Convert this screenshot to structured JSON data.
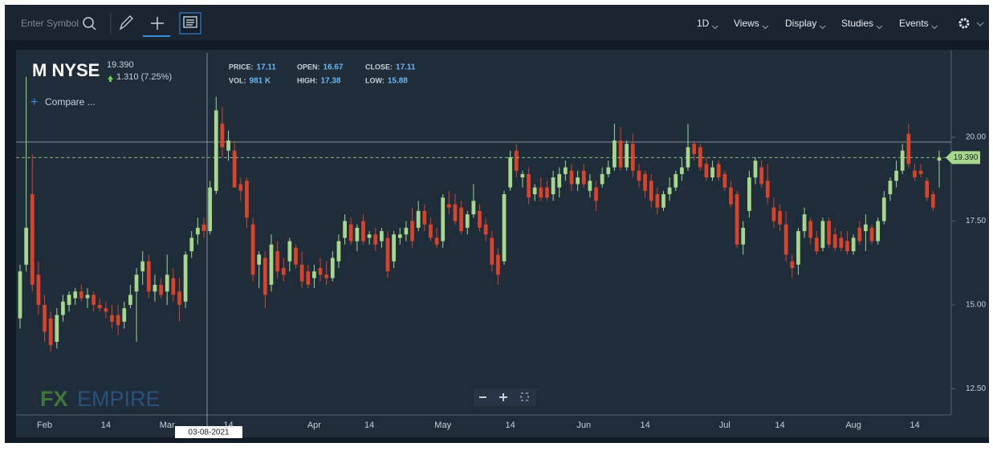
{
  "toolbar": {
    "search_placeholder": "Enter Symbol",
    "menu": [
      "1D",
      "Views",
      "Display",
      "Studies",
      "Events"
    ]
  },
  "header": {
    "symbol": "M NYSE",
    "last": "19.390",
    "change": "1.310 (7.25%)",
    "compare": "Compare ...",
    "info": [
      {
        "label": "PRICE:",
        "value": "17.11"
      },
      {
        "label": "OPEN:",
        "value": "16.67"
      },
      {
        "label": "CLOSE:",
        "value": "17.11"
      },
      {
        "label": "VOL:",
        "value": "981 K"
      },
      {
        "label": "HIGH:",
        "value": "17.38"
      },
      {
        "label": "LOW:",
        "value": "15.88"
      }
    ]
  },
  "watermark": {
    "first": "FX",
    "second": "EMPIRE"
  },
  "chart_data": {
    "type": "candlestick",
    "up_color": "#a6d78c",
    "down_color": "#d7432b",
    "ylim": [
      11.77,
      22.51
    ],
    "yticks": [
      {
        "value": 12.5,
        "label": "12.50"
      },
      {
        "value": 15,
        "label": "15.00"
      },
      {
        "value": 17.5,
        "label": "17.50"
      },
      {
        "value": 20,
        "label": "20.00"
      }
    ],
    "crosshair_date": "03-08-2021",
    "last_price_label": "19.390",
    "categories": [
      null,
      null,
      null,
      null,
      "Feb",
      null,
      null,
      null,
      null,
      null,
      null,
      null,
      null,
      null,
      "14",
      null,
      null,
      null,
      null,
      null,
      null,
      null,
      null,
      null,
      "Mar",
      null,
      null,
      null,
      null,
      null,
      null,
      null,
      null,
      null,
      "14",
      null,
      null,
      null,
      null,
      null,
      null,
      null,
      null,
      null,
      null,
      null,
      null,
      null,
      "Apr",
      null,
      null,
      null,
      null,
      null,
      null,
      null,
      null,
      "14",
      null,
      null,
      null,
      null,
      null,
      null,
      null,
      null,
      null,
      null,
      null,
      "May",
      null,
      null,
      null,
      null,
      null,
      null,
      null,
      null,
      null,
      null,
      "14",
      null,
      null,
      null,
      null,
      null,
      null,
      null,
      null,
      null,
      null,
      null,
      "Jun",
      null,
      null,
      null,
      null,
      null,
      null,
      null,
      null,
      null,
      "14",
      null,
      null,
      null,
      null,
      null,
      null,
      null,
      null,
      null,
      null,
      null,
      null,
      "Jul",
      null,
      null,
      null,
      null,
      null,
      null,
      null,
      null,
      "14",
      null,
      null,
      null,
      null,
      null,
      null,
      null,
      null,
      null,
      null,
      null,
      "Aug",
      null,
      null,
      null,
      null,
      null,
      null,
      null,
      null,
      null,
      "14",
      null,
      null,
      null,
      null
    ],
    "candles": [
      {
        "open": 14.6,
        "high": 16.2,
        "low": 14.3,
        "close": 16.0
      },
      {
        "open": 16.2,
        "high": 21.8,
        "low": 16.0,
        "close": 17.3
      },
      {
        "open": 18.3,
        "high": 19.5,
        "low": 15.4,
        "close": 15.6
      },
      {
        "open": 15.9,
        "high": 16.3,
        "low": 14.7,
        "close": 15.0
      },
      {
        "open": 15.0,
        "high": 15.3,
        "low": 13.9,
        "close": 14.2
      },
      {
        "open": 14.6,
        "high": 14.8,
        "low": 13.6,
        "close": 13.8
      },
      {
        "open": 13.9,
        "high": 14.9,
        "low": 13.7,
        "close": 14.7
      },
      {
        "open": 14.7,
        "high": 15.3,
        "low": 14.5,
        "close": 15.1
      },
      {
        "open": 15.0,
        "high": 15.4,
        "low": 14.8,
        "close": 15.3
      },
      {
        "open": 15.2,
        "high": 15.5,
        "low": 15.0,
        "close": 15.4
      },
      {
        "open": 15.4,
        "high": 15.6,
        "low": 15.1,
        "close": 15.2
      },
      {
        "open": 15.2,
        "high": 15.5,
        "low": 14.9,
        "close": 15.3
      },
      {
        "open": 15.3,
        "high": 15.4,
        "low": 14.8,
        "close": 15.0
      },
      {
        "open": 15.0,
        "high": 15.2,
        "low": 14.8,
        "close": 14.9
      },
      {
        "open": 14.9,
        "high": 15.1,
        "low": 14.6,
        "close": 14.8
      },
      {
        "open": 14.7,
        "high": 15.0,
        "low": 14.3,
        "close": 14.5
      },
      {
        "open": 14.7,
        "high": 15.0,
        "low": 14.1,
        "close": 14.4
      },
      {
        "open": 14.5,
        "high": 15.1,
        "low": 14.3,
        "close": 14.9
      },
      {
        "open": 15.0,
        "high": 15.6,
        "low": 14.9,
        "close": 15.3
      },
      {
        "open": 15.4,
        "high": 16.1,
        "low": 13.9,
        "close": 15.9
      },
      {
        "open": 16.0,
        "high": 16.6,
        "low": 15.6,
        "close": 16.3
      },
      {
        "open": 16.3,
        "high": 16.5,
        "low": 15.2,
        "close": 15.4
      },
      {
        "open": 15.4,
        "high": 15.9,
        "low": 15.1,
        "close": 15.6
      },
      {
        "open": 15.6,
        "high": 15.8,
        "low": 15.2,
        "close": 15.3
      },
      {
        "open": 15.4,
        "high": 16.5,
        "low": 15.0,
        "close": 15.9
      },
      {
        "open": 15.8,
        "high": 16.1,
        "low": 15.1,
        "close": 15.3
      },
      {
        "open": 15.4,
        "high": 15.8,
        "low": 14.5,
        "close": 15.0
      },
      {
        "open": 15.1,
        "high": 16.6,
        "low": 14.9,
        "close": 16.5
      },
      {
        "open": 16.6,
        "high": 17.2,
        "low": 16.4,
        "close": 17.0
      },
      {
        "open": 17.1,
        "high": 17.6,
        "low": 16.8,
        "close": 17.3
      },
      {
        "open": 17.4,
        "high": 17.6,
        "low": 17.0,
        "close": 17.2
      },
      {
        "open": 17.2,
        "high": 18.7,
        "low": 17.1,
        "close": 18.5
      },
      {
        "open": 18.4,
        "high": 21.2,
        "low": 18.3,
        "close": 20.8
      },
      {
        "open": 20.4,
        "high": 20.9,
        "low": 19.4,
        "close": 19.7
      },
      {
        "open": 19.6,
        "high": 20.2,
        "low": 19.3,
        "close": 19.9
      },
      {
        "open": 19.6,
        "high": 19.9,
        "low": 18.5,
        "close": 18.5
      },
      {
        "open": 18.6,
        "high": 18.8,
        "low": 18.1,
        "close": 18.4
      },
      {
        "open": 18.7,
        "high": 18.8,
        "low": 17.3,
        "close": 17.6
      },
      {
        "open": 17.4,
        "high": 17.6,
        "low": 15.7,
        "close": 15.9
      },
      {
        "open": 16.2,
        "high": 16.6,
        "low": 15.5,
        "close": 16.5
      },
      {
        "open": 16.4,
        "high": 16.6,
        "low": 14.9,
        "close": 15.3
      },
      {
        "open": 15.6,
        "high": 17.1,
        "low": 15.4,
        "close": 16.8
      },
      {
        "open": 16.6,
        "high": 16.9,
        "low": 15.8,
        "close": 16.0
      },
      {
        "open": 16.1,
        "high": 16.4,
        "low": 15.7,
        "close": 15.9
      },
      {
        "open": 16.3,
        "high": 17.0,
        "low": 16.0,
        "close": 16.9
      },
      {
        "open": 16.7,
        "high": 16.8,
        "low": 16.1,
        "close": 16.2
      },
      {
        "open": 16.2,
        "high": 16.6,
        "low": 15.5,
        "close": 15.7
      },
      {
        "open": 16.0,
        "high": 16.2,
        "low": 15.5,
        "close": 15.6
      },
      {
        "open": 15.8,
        "high": 16.2,
        "low": 15.5,
        "close": 16.0
      },
      {
        "open": 16.1,
        "high": 16.4,
        "low": 15.7,
        "close": 15.9
      },
      {
        "open": 15.9,
        "high": 16.3,
        "low": 15.6,
        "close": 15.8
      },
      {
        "open": 15.8,
        "high": 16.6,
        "low": 15.7,
        "close": 16.4
      },
      {
        "open": 16.3,
        "high": 17.1,
        "low": 16.1,
        "close": 16.9
      },
      {
        "open": 17.0,
        "high": 17.7,
        "low": 16.8,
        "close": 17.5
      },
      {
        "open": 17.4,
        "high": 17.6,
        "low": 16.8,
        "close": 16.9
      },
      {
        "open": 16.9,
        "high": 17.4,
        "low": 16.6,
        "close": 17.3
      },
      {
        "open": 17.5,
        "high": 17.7,
        "low": 16.8,
        "close": 16.9
      },
      {
        "open": 17.0,
        "high": 17.2,
        "low": 16.8,
        "close": 17.1
      },
      {
        "open": 17.1,
        "high": 17.3,
        "low": 16.6,
        "close": 16.8
      },
      {
        "open": 16.9,
        "high": 17.3,
        "low": 16.7,
        "close": 17.2
      },
      {
        "open": 17.0,
        "high": 17.2,
        "low": 15.8,
        "close": 16.0
      },
      {
        "open": 16.3,
        "high": 17.2,
        "low": 16.1,
        "close": 17.1
      },
      {
        "open": 17.0,
        "high": 17.3,
        "low": 16.8,
        "close": 17.1
      },
      {
        "open": 17.1,
        "high": 17.5,
        "low": 16.9,
        "close": 17.3
      },
      {
        "open": 17.5,
        "high": 17.9,
        "low": 16.7,
        "close": 16.9
      },
      {
        "open": 17.3,
        "high": 18.1,
        "low": 17.2,
        "close": 17.8
      },
      {
        "open": 17.8,
        "high": 18.0,
        "low": 17.2,
        "close": 17.4
      },
      {
        "open": 17.4,
        "high": 17.6,
        "low": 16.9,
        "close": 17.0
      },
      {
        "open": 17.0,
        "high": 17.3,
        "low": 16.7,
        "close": 16.8
      },
      {
        "open": 16.9,
        "high": 18.3,
        "low": 16.7,
        "close": 18.2
      },
      {
        "open": 18.0,
        "high": 18.4,
        "low": 17.7,
        "close": 17.9
      },
      {
        "open": 18.0,
        "high": 18.3,
        "low": 17.4,
        "close": 17.5
      },
      {
        "open": 17.9,
        "high": 18.1,
        "low": 17.1,
        "close": 17.2
      },
      {
        "open": 17.3,
        "high": 17.8,
        "low": 17.1,
        "close": 17.7
      },
      {
        "open": 17.7,
        "high": 18.6,
        "low": 17.6,
        "close": 18.1
      },
      {
        "open": 17.8,
        "high": 18.0,
        "low": 17.2,
        "close": 17.3
      },
      {
        "open": 17.4,
        "high": 17.6,
        "low": 16.9,
        "close": 17.1
      },
      {
        "open": 17.0,
        "high": 17.2,
        "low": 16.0,
        "close": 16.2
      },
      {
        "open": 16.5,
        "high": 16.7,
        "low": 15.6,
        "close": 15.9
      },
      {
        "open": 16.3,
        "high": 18.4,
        "low": 16.2,
        "close": 18.3
      },
      {
        "open": 18.5,
        "high": 19.6,
        "low": 18.4,
        "close": 19.4
      },
      {
        "open": 19.6,
        "high": 19.8,
        "low": 18.8,
        "close": 19.0
      },
      {
        "open": 18.8,
        "high": 19.0,
        "low": 18.5,
        "close": 18.9
      },
      {
        "open": 18.9,
        "high": 19.1,
        "low": 18.0,
        "close": 18.2
      },
      {
        "open": 18.3,
        "high": 18.6,
        "low": 18.1,
        "close": 18.5
      },
      {
        "open": 18.5,
        "high": 18.8,
        "low": 18.1,
        "close": 18.2
      },
      {
        "open": 18.5,
        "high": 18.7,
        "low": 18.1,
        "close": 18.2
      },
      {
        "open": 18.3,
        "high": 19.0,
        "low": 18.1,
        "close": 18.8
      },
      {
        "open": 18.5,
        "high": 19.1,
        "low": 18.2,
        "close": 18.9
      },
      {
        "open": 18.9,
        "high": 19.3,
        "low": 18.7,
        "close": 19.1
      },
      {
        "open": 19.0,
        "high": 19.2,
        "low": 18.4,
        "close": 18.6
      },
      {
        "open": 18.6,
        "high": 19.0,
        "low": 18.4,
        "close": 18.8
      },
      {
        "open": 19.0,
        "high": 19.2,
        "low": 18.5,
        "close": 18.6
      },
      {
        "open": 18.4,
        "high": 18.9,
        "low": 18.2,
        "close": 18.7
      },
      {
        "open": 18.5,
        "high": 18.7,
        "low": 17.8,
        "close": 18.1
      },
      {
        "open": 18.6,
        "high": 19.1,
        "low": 18.5,
        "close": 18.9
      },
      {
        "open": 18.9,
        "high": 19.3,
        "low": 18.8,
        "close": 19.1
      },
      {
        "open": 19.1,
        "high": 20.4,
        "low": 19.0,
        "close": 19.9
      },
      {
        "open": 19.9,
        "high": 20.3,
        "low": 19.0,
        "close": 19.1
      },
      {
        "open": 19.1,
        "high": 19.9,
        "low": 19.0,
        "close": 19.8
      },
      {
        "open": 19.8,
        "high": 20.1,
        "low": 18.8,
        "close": 19.0
      },
      {
        "open": 19.0,
        "high": 19.2,
        "low": 18.5,
        "close": 18.7
      },
      {
        "open": 18.9,
        "high": 19.0,
        "low": 18.2,
        "close": 18.4
      },
      {
        "open": 18.7,
        "high": 18.9,
        "low": 17.9,
        "close": 18.1
      },
      {
        "open": 18.3,
        "high": 18.5,
        "low": 17.7,
        "close": 17.9
      },
      {
        "open": 17.9,
        "high": 18.4,
        "low": 17.8,
        "close": 18.3
      },
      {
        "open": 18.3,
        "high": 18.8,
        "low": 18.1,
        "close": 18.5
      },
      {
        "open": 18.5,
        "high": 19.0,
        "low": 18.4,
        "close": 18.9
      },
      {
        "open": 18.9,
        "high": 19.4,
        "low": 18.7,
        "close": 19.1
      },
      {
        "open": 19.1,
        "high": 20.4,
        "low": 19.0,
        "close": 19.7
      },
      {
        "open": 19.8,
        "high": 19.9,
        "low": 19.3,
        "close": 19.5
      },
      {
        "open": 19.7,
        "high": 19.8,
        "low": 19.0,
        "close": 19.1
      },
      {
        "open": 19.2,
        "high": 19.4,
        "low": 18.7,
        "close": 18.8
      },
      {
        "open": 18.8,
        "high": 19.3,
        "low": 18.7,
        "close": 19.1
      },
      {
        "open": 19.2,
        "high": 19.3,
        "low": 18.7,
        "close": 18.8
      },
      {
        "open": 18.9,
        "high": 19.0,
        "low": 18.4,
        "close": 18.5
      },
      {
        "open": 18.5,
        "high": 18.7,
        "low": 17.9,
        "close": 18.0
      },
      {
        "open": 18.3,
        "high": 18.4,
        "low": 16.7,
        "close": 16.8
      },
      {
        "open": 16.8,
        "high": 17.5,
        "low": 16.5,
        "close": 17.3
      },
      {
        "open": 17.8,
        "high": 19.0,
        "low": 17.6,
        "close": 18.8
      },
      {
        "open": 18.8,
        "high": 19.4,
        "low": 18.6,
        "close": 19.3
      },
      {
        "open": 19.1,
        "high": 19.3,
        "low": 18.5,
        "close": 18.6
      },
      {
        "open": 18.7,
        "high": 19.2,
        "low": 18.0,
        "close": 18.2
      },
      {
        "open": 17.9,
        "high": 18.2,
        "low": 17.3,
        "close": 17.5
      },
      {
        "open": 17.8,
        "high": 18.0,
        "low": 17.2,
        "close": 17.4
      },
      {
        "open": 17.4,
        "high": 17.8,
        "low": 16.3,
        "close": 16.5
      },
      {
        "open": 16.3,
        "high": 16.5,
        "low": 15.8,
        "close": 16.1
      },
      {
        "open": 16.2,
        "high": 17.3,
        "low": 15.9,
        "close": 17.2
      },
      {
        "open": 17.2,
        "high": 17.9,
        "low": 17.0,
        "close": 17.7
      },
      {
        "open": 17.5,
        "high": 17.6,
        "low": 16.8,
        "close": 17.0
      },
      {
        "open": 17.0,
        "high": 17.2,
        "low": 16.5,
        "close": 16.6
      },
      {
        "open": 16.7,
        "high": 17.6,
        "low": 16.6,
        "close": 17.5
      },
      {
        "open": 17.5,
        "high": 17.6,
        "low": 16.7,
        "close": 16.8
      },
      {
        "open": 17.1,
        "high": 17.3,
        "low": 16.6,
        "close": 16.7
      },
      {
        "open": 17.0,
        "high": 17.2,
        "low": 16.6,
        "close": 16.7
      },
      {
        "open": 16.9,
        "high": 17.2,
        "low": 16.5,
        "close": 16.6
      },
      {
        "open": 16.6,
        "high": 17.1,
        "low": 16.5,
        "close": 17.0
      },
      {
        "open": 17.3,
        "high": 17.5,
        "low": 16.8,
        "close": 16.9
      },
      {
        "open": 17.2,
        "high": 17.7,
        "low": 16.6,
        "close": 17.4
      },
      {
        "open": 17.3,
        "high": 17.4,
        "low": 16.8,
        "close": 16.9
      },
      {
        "open": 16.9,
        "high": 17.6,
        "low": 16.8,
        "close": 17.5
      },
      {
        "open": 17.5,
        "high": 18.4,
        "low": 17.4,
        "close": 18.2
      },
      {
        "open": 18.3,
        "high": 18.8,
        "low": 18.1,
        "close": 18.7
      },
      {
        "open": 18.7,
        "high": 19.3,
        "low": 18.5,
        "close": 19.0
      },
      {
        "open": 19.0,
        "high": 19.8,
        "low": 18.9,
        "close": 19.6
      },
      {
        "open": 20.1,
        "high": 20.4,
        "low": 19.1,
        "close": 19.2
      },
      {
        "open": 19.0,
        "high": 19.2,
        "low": 18.7,
        "close": 18.8
      },
      {
        "open": 19.0,
        "high": 19.2,
        "low": 18.8,
        "close": 18.9
      },
      {
        "open": 18.7,
        "high": 18.8,
        "low": 18.1,
        "close": 18.2
      },
      {
        "open": 18.3,
        "high": 18.4,
        "low": 17.8,
        "close": 17.9
      },
      {
        "open": 19.3,
        "high": 19.6,
        "low": 18.5,
        "close": 19.39
      }
    ]
  }
}
